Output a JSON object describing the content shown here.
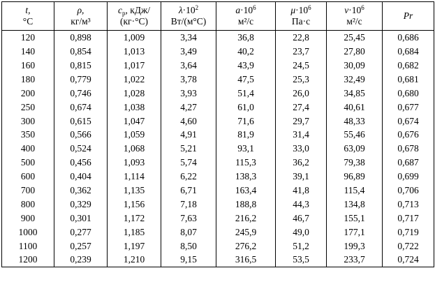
{
  "table": {
    "headers": [
      {
        "sym": "t,",
        "sup": "",
        "sub": "",
        "rest": "",
        "unit": "°С"
      },
      {
        "sym": "ρ,",
        "sup": "",
        "sub": "",
        "rest": "",
        "unit": "кг/м³"
      },
      {
        "sym": "c",
        "sup": "",
        "sub": "p",
        "rest": ", кДж/",
        "unit": "(кг·°С)"
      },
      {
        "sym": "λ",
        "sup": "2",
        "sub": "",
        "rest": "·10",
        "unit": "Вт/(м°С)"
      },
      {
        "sym": "a",
        "sup": "6",
        "sub": "",
        "rest": "·10",
        "unit": "м²/с"
      },
      {
        "sym": "μ",
        "sup": "6",
        "sub": "",
        "rest": "·10",
        "unit": "Па·с"
      },
      {
        "sym": "ν",
        "sup": "6",
        "sub": "",
        "rest": "·10",
        "unit": "м²/с"
      },
      {
        "sym": "Pr",
        "sup": "",
        "sub": "",
        "rest": "",
        "unit": ""
      }
    ],
    "rows": [
      [
        "120",
        "0,898",
        "1,009",
        "3,34",
        "36,8",
        "22,8",
        "25,45",
        "0,686"
      ],
      [
        "140",
        "0,854",
        "1,013",
        "3,49",
        "40,2",
        "23,7",
        "27,80",
        "0,684"
      ],
      [
        "160",
        "0,815",
        "1,017",
        "3,64",
        "43,9",
        "24,5",
        "30,09",
        "0,682"
      ],
      [
        "180",
        "0,779",
        "1,022",
        "3,78",
        "47,5",
        "25,3",
        "32,49",
        "0,681"
      ],
      [
        "200",
        "0,746",
        "1,028",
        "3,93",
        "51,4",
        "26,0",
        "34,85",
        "0,680"
      ],
      [
        "250",
        "0,674",
        "1,038",
        "4,27",
        "61,0",
        "27,4",
        "40,61",
        "0,677"
      ],
      [
        "300",
        "0,615",
        "1,047",
        "4,60",
        "71,6",
        "29,7",
        "48,33",
        "0,674"
      ],
      [
        "350",
        "0,566",
        "1,059",
        "4,91",
        "81,9",
        "31,4",
        "55,46",
        "0,676"
      ],
      [
        "400",
        "0,524",
        "1,068",
        "5,21",
        "93,1",
        "33,0",
        "63,09",
        "0,678"
      ],
      [
        "500",
        "0,456",
        "1,093",
        "5,74",
        "115,3",
        "36,2",
        "79,38",
        "0,687"
      ],
      [
        "600",
        "0,404",
        "1,114",
        "6,22",
        "138,3",
        "39,1",
        "96,89",
        "0,699"
      ],
      [
        "700",
        "0,362",
        "1,135",
        "6,71",
        "163,4",
        "41,8",
        "115,4",
        "0,706"
      ],
      [
        "800",
        "0,329",
        "1,156",
        "7,18",
        "188,8",
        "44,3",
        "134,8",
        "0,713"
      ],
      [
        "900",
        "0,301",
        "1,172",
        "7,63",
        "216,2",
        "46,7",
        "155,1",
        "0,717"
      ],
      [
        "1000",
        "0,277",
        "1,185",
        "8,07",
        "245,9",
        "49,0",
        "177,1",
        "0,719"
      ],
      [
        "1100",
        "0,257",
        "1,197",
        "8,50",
        "276,2",
        "51,2",
        "199,3",
        "0,722"
      ],
      [
        "1200",
        "0,239",
        "1,210",
        "9,15",
        "316,5",
        "53,5",
        "233,7",
        "0,724"
      ]
    ]
  }
}
